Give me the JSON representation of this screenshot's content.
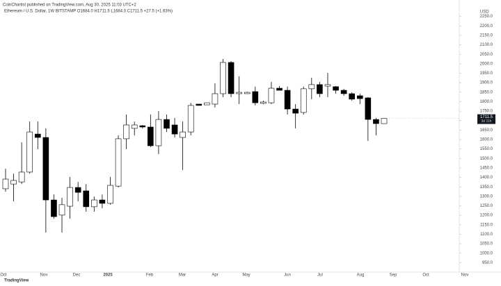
{
  "header": {
    "publisher": "CoinChartist published on TradingView.com, Aug 30, 2025 11:03 UTC+2",
    "symbol": "Ethereum / U.S. Dollar, 1W BITSTAMP O1684.0 H1711.5 L1684.0 C1711.5 +27.5 (+1.63%)"
  },
  "chart_data": {
    "type": "candlestick",
    "up_color": "#ffffff",
    "down_color": "#000000",
    "grid": false,
    "open": [
      1340,
      1365,
      1376,
      1428,
      1629,
      1611,
      1281,
      1201,
      1248,
      1347,
      1329,
      1245,
      1281,
      1263,
      1354,
      1604,
      1659,
      1673,
      1666,
      1567,
      1706,
      1677,
      1611,
      1640,
      1787,
      1783,
      1787,
      1842,
      2007,
      1842,
      1842,
      1853,
      1791,
      1794,
      1871,
      1860,
      1761,
      1743,
      1868,
      1890,
      1882,
      1879,
      1860,
      1842,
      1831,
      1820,
      1706,
      1684
    ],
    "high": [
      1446,
      1420,
      1585,
      1695,
      1695,
      1659,
      1310,
      1292,
      1402,
      1376,
      1365,
      1299,
      1310,
      1402,
      1622,
      1732,
      1695,
      1677,
      1732,
      1750,
      1732,
      1714,
      1695,
      1794,
      1787,
      1794,
      1897,
      2025,
      2014,
      1934,
      1853,
      1879,
      1805,
      1904,
      1882,
      1879,
      1787,
      1879,
      1926,
      1904,
      1952,
      1882,
      1868,
      1849,
      1842,
      1824,
      1714,
      1711.5
    ],
    "low": [
      1325,
      1274,
      1365,
      1420,
      1549,
      1109,
      1182,
      1109,
      1182,
      1274,
      1219,
      1219,
      1237,
      1256,
      1347,
      1549,
      1622,
      1659,
      1560,
      1523,
      1640,
      1611,
      1439,
      1622,
      1780,
      1783,
      1769,
      1824,
      1824,
      1787,
      1842,
      1780,
      1787,
      1787,
      1860,
      1732,
      1659,
      1732,
      1813,
      1824,
      1824,
      1842,
      1831,
      1805,
      1787,
      1593,
      1622,
      1684
    ],
    "close": [
      1391,
      1384,
      1428,
      1640,
      1611,
      1281,
      1193,
      1256,
      1347,
      1321,
      1245,
      1281,
      1263,
      1358,
      1604,
      1677,
      1677,
      1666,
      1567,
      1706,
      1659,
      1629,
      1640,
      1780,
      1780,
      1794,
      1842,
      2007,
      1842,
      1849,
      1849,
      1794,
      1798,
      1871,
      1860,
      1761,
      1739,
      1868,
      1890,
      1842,
      1890,
      1860,
      1842,
      1813,
      1816,
      1706,
      1684,
      1711.5
    ],
    "countdown": "3d 11h",
    "ylim": [
      900,
      2300
    ],
    "yticks": [
      {
        "value": 950,
        "label": "950.0"
      },
      {
        "value": 1000,
        "label": "1000.0"
      },
      {
        "value": 1050,
        "label": "1050.0"
      },
      {
        "value": 1100,
        "label": "1100.0"
      },
      {
        "value": 1150,
        "label": "1150.0"
      },
      {
        "value": 1200,
        "label": "1200.0"
      },
      {
        "value": 1250,
        "label": "1250.0"
      },
      {
        "value": 1300,
        "label": "1300.0"
      },
      {
        "value": 1350,
        "label": "1350.0"
      },
      {
        "value": 1400,
        "label": "1400.0"
      },
      {
        "value": 1450,
        "label": "1450.0"
      },
      {
        "value": 1500,
        "label": "1500.0"
      },
      {
        "value": 1550,
        "label": "1550.0"
      },
      {
        "value": 1600,
        "label": "1600.0"
      },
      {
        "value": 1650,
        "label": "1650.0"
      },
      {
        "value": 1700,
        "label": "1700.0"
      },
      {
        "value": 1750,
        "label": "1750.0"
      },
      {
        "value": 1800,
        "label": "1800.0"
      },
      {
        "value": 1850,
        "label": "1850.0"
      },
      {
        "value": 1900,
        "label": "1900.0"
      },
      {
        "value": 1950,
        "label": "1950.0"
      },
      {
        "value": 2000,
        "label": "2000.0"
      },
      {
        "value": 2050,
        "label": "2050.0"
      },
      {
        "value": 2100,
        "label": "2100.0"
      },
      {
        "value": 2150,
        "label": "2150.0"
      },
      {
        "value": 2200,
        "label": "2200.0"
      },
      {
        "value": 2250,
        "label": "2250.0"
      }
    ],
    "xlabels": [
      "Oct",
      "Nov",
      "Dec",
      "2025",
      "Feb",
      "Mar",
      "Apr",
      "May",
      "Jun",
      "Jul",
      "Aug",
      "Sep",
      "Oct",
      "Nov"
    ],
    "currency": "USD"
  },
  "footer": {
    "logo": "TradingView"
  }
}
